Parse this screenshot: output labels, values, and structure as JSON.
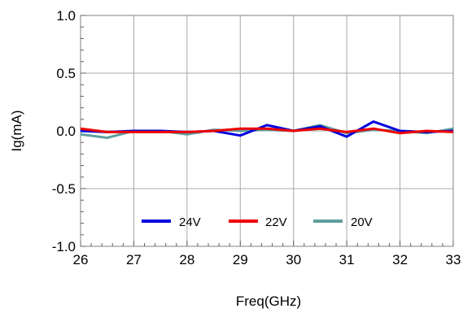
{
  "chart_data": {
    "type": "line",
    "title": "",
    "xlabel": "Freq(GHz)",
    "ylabel": "Ig(mA)",
    "xlim": [
      26,
      33
    ],
    "ylim": [
      -1.0,
      1.0
    ],
    "xticks": [
      26,
      27,
      28,
      29,
      30,
      31,
      32,
      33
    ],
    "yticks": [
      1.0,
      0.5,
      0.0,
      -0.5,
      -1.0
    ],
    "xtick_labels": [
      "26",
      "27",
      "28",
      "29",
      "30",
      "31",
      "32",
      "33"
    ],
    "ytick_labels": [
      "1.0",
      "0.5",
      "0.0",
      "-0.5",
      "-1.0"
    ],
    "grid": true,
    "legend_position": "bottom-center",
    "x": [
      26,
      26.5,
      27,
      27.5,
      28,
      28.5,
      29,
      29.5,
      30,
      30.5,
      31,
      31.5,
      32,
      32.5,
      33
    ],
    "series": [
      {
        "name": "24V",
        "color": "#0000dd",
        "values": [
          0.0,
          -0.01,
          0.0,
          0.0,
          -0.01,
          0.0,
          -0.04,
          0.05,
          0.0,
          0.04,
          -0.05,
          0.08,
          0.0,
          -0.01,
          0.0
        ]
      },
      {
        "name": "22V",
        "color": "#ee0000",
        "values": [
          0.02,
          -0.01,
          -0.01,
          -0.01,
          -0.01,
          0.0,
          0.02,
          0.02,
          0.0,
          0.02,
          -0.01,
          0.02,
          -0.02,
          0.0,
          -0.01
        ]
      },
      {
        "name": "20V",
        "color": "#5f9f9f",
        "values": [
          -0.03,
          -0.06,
          0.0,
          0.0,
          -0.03,
          0.01,
          0.0,
          0.01,
          0.0,
          0.05,
          -0.02,
          0.01,
          0.0,
          -0.02,
          0.02
        ]
      }
    ]
  }
}
